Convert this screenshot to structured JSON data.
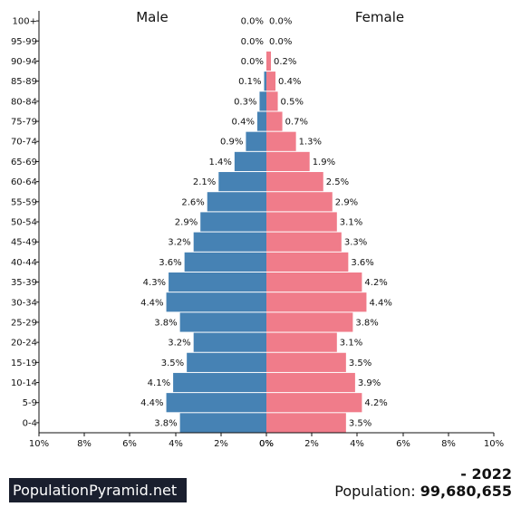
{
  "chart_data": {
    "type": "bar",
    "orientation": "horizontal-population-pyramid",
    "categories": [
      "100+",
      "95-99",
      "90-94",
      "85-89",
      "80-84",
      "75-79",
      "70-74",
      "65-69",
      "60-64",
      "55-59",
      "50-54",
      "45-49",
      "40-44",
      "35-39",
      "30-34",
      "25-29",
      "20-24",
      "15-19",
      "10-14",
      "5-9",
      "0-4"
    ],
    "series": [
      {
        "name": "Male",
        "color": "#4682b4",
        "values": [
          0.0,
          0.0,
          0.0,
          0.1,
          0.3,
          0.4,
          0.9,
          1.4,
          2.1,
          2.6,
          2.9,
          3.2,
          3.6,
          4.3,
          4.4,
          3.8,
          3.2,
          3.5,
          4.1,
          4.4,
          3.8
        ]
      },
      {
        "name": "Female",
        "color": "#f07c8a",
        "values": [
          0.0,
          0.0,
          0.2,
          0.4,
          0.5,
          0.7,
          1.3,
          1.9,
          2.5,
          2.9,
          3.1,
          3.3,
          3.6,
          4.2,
          4.4,
          3.8,
          3.1,
          3.5,
          3.9,
          4.2,
          3.5
        ]
      }
    ],
    "xlim": [
      -10,
      10
    ],
    "x_ticks": [
      "10%",
      "8%",
      "6%",
      "4%",
      "2%",
      "0%",
      "0%",
      "2%",
      "4%",
      "6%",
      "8%",
      "10%"
    ],
    "value_suffix": "%"
  },
  "footer": {
    "brand": "PopulationPyramid.net",
    "year": "- 2022",
    "population_label": "Population:",
    "population_value": "99,680,655"
  }
}
